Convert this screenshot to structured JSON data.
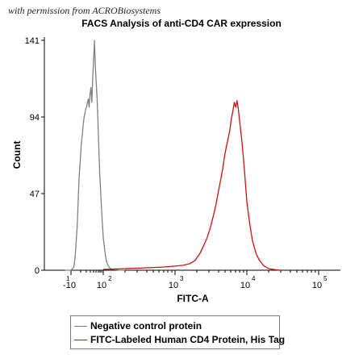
{
  "credit": "with permission from ACROBiosystems",
  "chart_data": {
    "type": "line",
    "title": "FACS Analysis of anti-CD4 CAR expression",
    "xlabel": "FITC-A",
    "ylabel": "Count",
    "xscale": "biexponential",
    "ylim": [
      0,
      141
    ],
    "y_ticks": [
      "0",
      "47",
      "94",
      "141"
    ],
    "x_ticks": [
      {
        "base": "-10",
        "exp": "1"
      },
      {
        "base": "10",
        "exp": "2"
      },
      {
        "base": "10",
        "exp": "3"
      },
      {
        "base": "10",
        "exp": "4"
      },
      {
        "base": "10",
        "exp": "5"
      }
    ],
    "x_tick_values": [
      -10,
      100,
      1000,
      10000,
      100000
    ],
    "grid": false,
    "legend_position": "bottom",
    "series": [
      {
        "name": "Negative control protein",
        "color": "#808080",
        "x": [
          -30,
          -10,
          0,
          4,
          8,
          12,
          15,
          18,
          22,
          25,
          28,
          31,
          34,
          37,
          40,
          43,
          46,
          49,
          52,
          55,
          58,
          61,
          64,
          67,
          70,
          73,
          76,
          79,
          82,
          85,
          88,
          92,
          96,
          100,
          105,
          110,
          116,
          125,
          135,
          150,
          170,
          200
        ],
        "y": [
          0,
          0,
          2,
          8,
          18,
          30,
          45,
          58,
          68,
          77,
          82,
          88,
          93,
          96,
          99,
          100,
          103,
          105,
          100,
          108,
          112,
          103,
          118,
          128,
          141,
          125,
          115,
          105,
          90,
          75,
          60,
          45,
          32,
          20,
          12,
          6,
          3,
          1,
          0.5,
          0.3,
          0,
          0
        ]
      },
      {
        "name": "FITC-Labeled Human CD4 Protein, His Tag",
        "color": "#cc1010",
        "x": [
          100,
          200,
          400,
          700,
          1000,
          1300,
          1600,
          1900,
          2200,
          2500,
          2800,
          3100,
          3400,
          3700,
          4000,
          4300,
          4600,
          4900,
          5200,
          5500,
          5800,
          6100,
          6400,
          6700,
          7000,
          7300,
          7600,
          8000,
          8500,
          9000,
          9500,
          10000,
          11000,
          12000,
          13500,
          15000,
          17000,
          20000,
          25000,
          30000
        ],
        "y": [
          0.5,
          1,
          1.5,
          2,
          2.5,
          3,
          4,
          6,
          10,
          15,
          20,
          26,
          33,
          40,
          48,
          55,
          62,
          70,
          76,
          81,
          86,
          93,
          98,
          103,
          100,
          104,
          99,
          90,
          80,
          68,
          55,
          42,
          28,
          18,
          10,
          6,
          3,
          1,
          0.3,
          0
        ]
      }
    ]
  }
}
